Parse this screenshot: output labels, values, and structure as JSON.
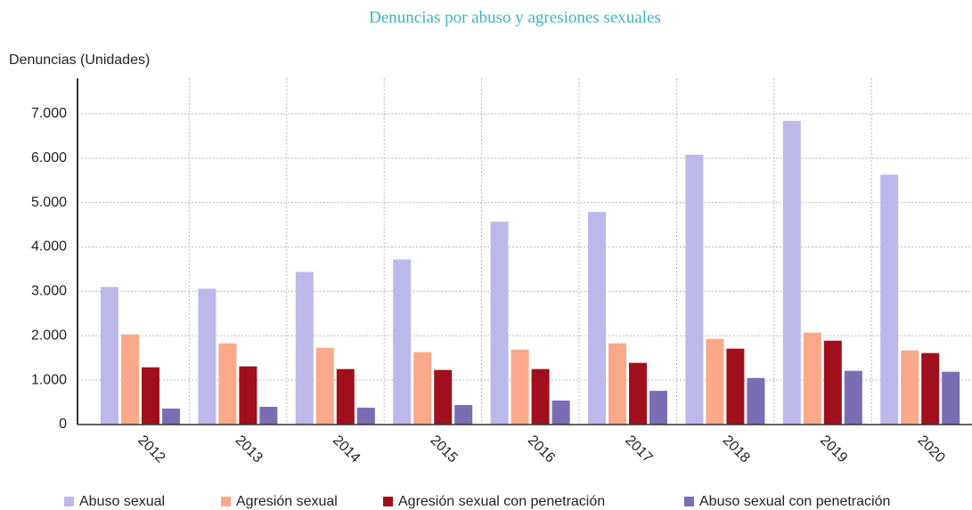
{
  "chart_data": {
    "type": "bar",
    "title": "Denuncias por abuso y agresiones sexuales",
    "y_axis_label": "Denuncias (Unidades)",
    "categories": [
      "2012",
      "2013",
      "2014",
      "2015",
      "2016",
      "2017",
      "2018",
      "2019",
      "2020"
    ],
    "series": [
      {
        "name": "Abuso sexual",
        "color": "#bcb9ea",
        "values": [
          3100,
          3060,
          3440,
          3720,
          4570,
          4790,
          6080,
          6840,
          5630
        ]
      },
      {
        "name": "Agresión sexual",
        "color": "#f9a98a",
        "values": [
          2030,
          1830,
          1730,
          1630,
          1690,
          1830,
          1930,
          2070,
          1670
        ]
      },
      {
        "name": "Agresión sexual con penetración",
        "color": "#a10f1c",
        "values": [
          1290,
          1310,
          1250,
          1230,
          1250,
          1390,
          1710,
          1890,
          1610
        ]
      },
      {
        "name": "Abuso sexual con penetración",
        "color": "#7a6db3",
        "values": [
          360,
          400,
          380,
          440,
          540,
          760,
          1050,
          1210,
          1190
        ]
      }
    ],
    "ylim": [
      0,
      7800
    ],
    "yticks": [
      0,
      {
        "value": 1000,
        "label": "1.000"
      },
      {
        "value": 2000,
        "label": "2.000"
      },
      {
        "value": 3000,
        "label": "3.000"
      },
      {
        "value": 4000,
        "label": "4.000"
      },
      {
        "value": 5000,
        "label": "5.000"
      },
      {
        "value": 6000,
        "label": "6.000"
      },
      {
        "value": 7000,
        "label": "7.000"
      }
    ],
    "grid": true,
    "legend": "bottom"
  }
}
